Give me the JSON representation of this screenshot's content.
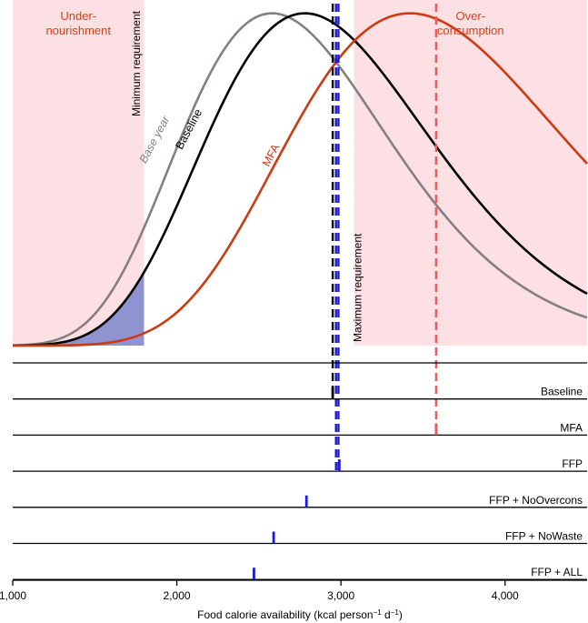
{
  "chart_data": {
    "type": "line",
    "xlabel_parts": [
      "Food calorie availability (kcal person",
      "−1",
      " d",
      "−1",
      ")"
    ],
    "xlim": [
      1000,
      4500
    ],
    "x_ticks": [
      1000,
      2000,
      3000,
      4000
    ],
    "x_tick_labels": [
      "1,000",
      "2,000",
      "3,000",
      "4,000"
    ],
    "regions": [
      {
        "name": "undernourishment",
        "label_lines": [
          "Under-",
          "nourishment"
        ],
        "x_range": [
          1000,
          1800
        ],
        "color": "#fde0e3",
        "label_color": "#d2431c"
      },
      {
        "name": "overconsumption",
        "label_lines": [
          "Over-",
          "consumption"
        ],
        "x_range": [
          3080,
          4500
        ],
        "color": "#fde0e3",
        "label_color": "#d2431c"
      }
    ],
    "threshold_labels": [
      {
        "name": "minimum-requirement",
        "text": "Minimum requirement",
        "x": 1775
      },
      {
        "name": "maximum-requirement",
        "text": "Maximum requirement",
        "x": 3125
      }
    ],
    "distribution_params": {
      "type": "lognormal",
      "sigma": 0.25,
      "samples": 160
    },
    "series": [
      {
        "name": "Base year",
        "mode": 2580,
        "peak": 1.0,
        "color": "#857f80",
        "label_x": 1810,
        "label_y": 0.53,
        "label_angle": -62
      },
      {
        "name": "Baseline",
        "mode": 2780,
        "peak": 1.0,
        "color": "#000000",
        "label_x": 2030,
        "label_y": 0.57,
        "label_angle": -62
      },
      {
        "name": "MFA",
        "mode": 3420,
        "peak": 1.0,
        "color": "#cd3a12",
        "label_x": 2560,
        "label_y": 0.52,
        "label_angle": -62
      }
    ],
    "shaded_area": {
      "series": "Baseline",
      "x_range": [
        1000,
        1800
      ],
      "color": "#8f93cf"
    },
    "reference_lines": [
      {
        "series": "Baseline",
        "x": 2950,
        "color": "#000000",
        "track": 1
      },
      {
        "series": "FFP",
        "x": 2970,
        "color": "#1a1ad0",
        "track": 3
      },
      {
        "series": "FFP",
        "x": 2985,
        "color": "#1a1ad0",
        "track": 3
      },
      {
        "series": "MFA",
        "x": 3580,
        "color": "#ee5a5a",
        "track": 2
      }
    ],
    "tracks": [
      {
        "label": "",
        "marker_x": null,
        "marker_color": null
      },
      {
        "label": "Baseline",
        "marker_x": 2950,
        "marker_color": "#000000"
      },
      {
        "label": "MFA",
        "marker_x": 3580,
        "marker_color": "#ee5a5a"
      },
      {
        "label": "FFP",
        "marker_x": 2990,
        "marker_color": "#1a1ad0"
      },
      {
        "label": "FFP + NoOvercons",
        "marker_x": 2790,
        "marker_color": "#1a1ad0"
      },
      {
        "label": "FFP + NoWaste",
        "marker_x": 2590,
        "marker_color": "#1a1ad0"
      },
      {
        "label": "FFP + ALL",
        "marker_x": 2470,
        "marker_color": "#1a1ad0"
      }
    ]
  }
}
